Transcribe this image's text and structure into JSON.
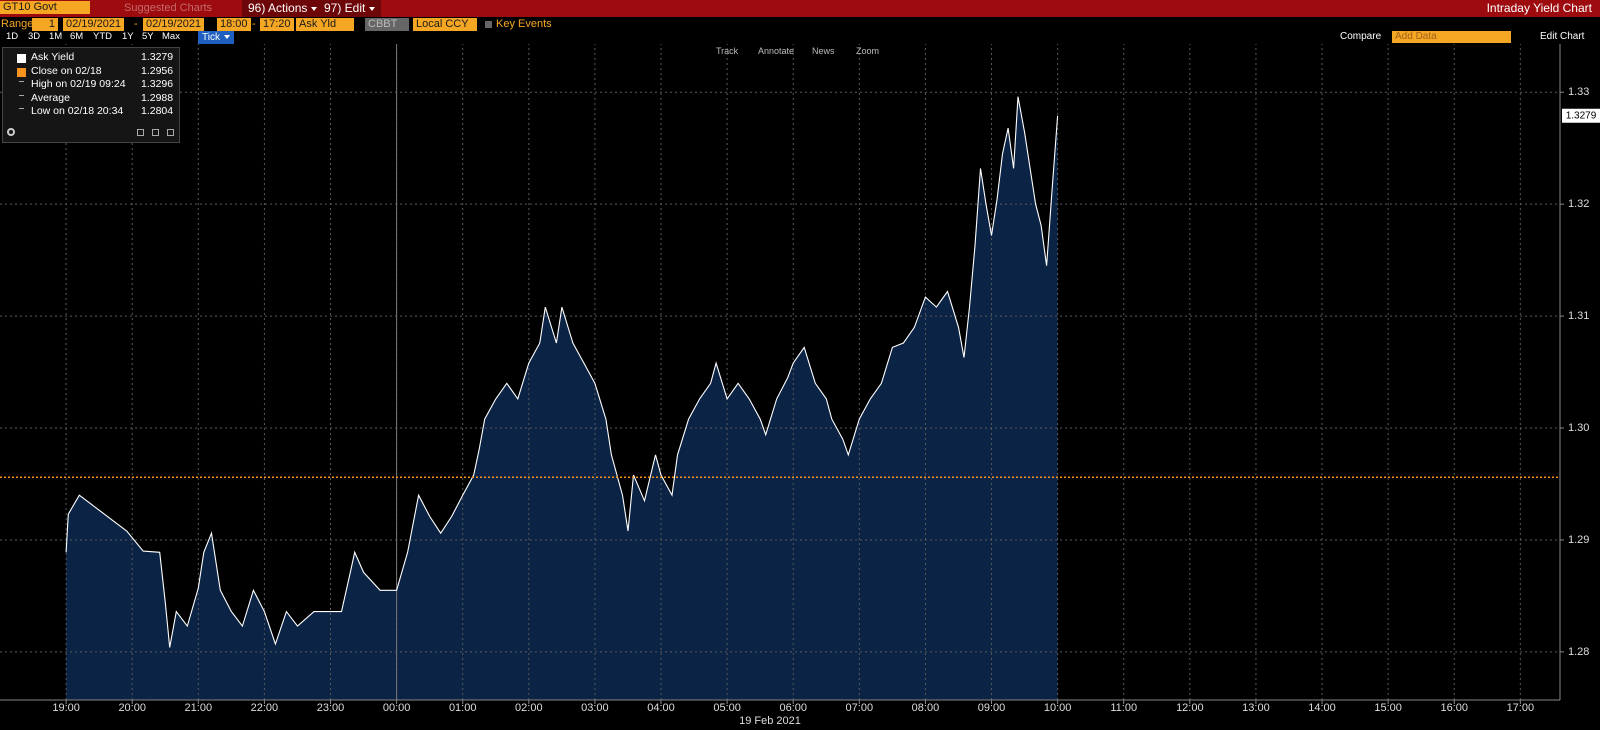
{
  "ui": {
    "security": "GT10 Govt",
    "suggested": "Suggested Charts",
    "actions": "96) Actions",
    "edit": "97) Edit",
    "window_title": "Intraday Yield Chart",
    "range_label": "Range",
    "range_count": "1",
    "start_date": "02/19/2021",
    "date_sep": "-",
    "end_date": "02/19/2021",
    "start_time": "18:00",
    "time_sep": "-",
    "end_time": "17:20",
    "field": "Ask Yld",
    "source": "CBBT",
    "currency": "Local CCY",
    "key_events": "Key Events",
    "periods": [
      "1D",
      "3D",
      "1M",
      "6M",
      "YTD",
      "1Y",
      "5Y",
      "Max"
    ],
    "active_period": "Tick",
    "compare": "Compare",
    "add_data": "Add Data",
    "edit_chart": "Edit Chart",
    "tools": [
      "Track",
      "Annotate",
      "News",
      "Zoom"
    ]
  },
  "chart_data": {
    "type": "area",
    "legend_stats": [
      {
        "label": "Ask Yield",
        "value": 1.3279
      },
      {
        "label": "Close on 02/18",
        "value": 1.2956
      },
      {
        "label": "High on 02/19 09:24",
        "value": 1.3296
      },
      {
        "label": "Average",
        "value": 1.2988
      },
      {
        "label": "Low on 02/18 20:34",
        "value": 1.2804
      }
    ],
    "x_sublabel": "19 Feb 2021",
    "series": [
      {
        "name": "Ask Yield",
        "color": "#ffffff",
        "fill": "#0b2345",
        "x": [
          "2021-02-18T19:00",
          "2021-02-18T19:02",
          "2021-02-18T19:12",
          "2021-02-18T19:55",
          "2021-02-18T20:10",
          "2021-02-18T20:25",
          "2021-02-18T20:30",
          "2021-02-18T20:34",
          "2021-02-18T20:40",
          "2021-02-18T20:50",
          "2021-02-18T21:00",
          "2021-02-18T21:05",
          "2021-02-18T21:12",
          "2021-02-18T21:20",
          "2021-02-18T21:30",
          "2021-02-18T21:40",
          "2021-02-18T21:50",
          "2021-02-18T22:00",
          "2021-02-18T22:10",
          "2021-02-18T22:20",
          "2021-02-18T22:30",
          "2021-02-18T22:45",
          "2021-02-18T23:10",
          "2021-02-18T23:18",
          "2021-02-18T23:22",
          "2021-02-18T23:30",
          "2021-02-18T23:45",
          "2021-02-19T00:00",
          "2021-02-19T00:10",
          "2021-02-19T00:20",
          "2021-02-19T00:30",
          "2021-02-19T00:40",
          "2021-02-19T00:50",
          "2021-02-19T01:00",
          "2021-02-19T01:10",
          "2021-02-19T01:15",
          "2021-02-19T01:20",
          "2021-02-19T01:30",
          "2021-02-19T01:40",
          "2021-02-19T01:50",
          "2021-02-19T02:00",
          "2021-02-19T02:10",
          "2021-02-19T02:15",
          "2021-02-19T02:25",
          "2021-02-19T02:30",
          "2021-02-19T02:40",
          "2021-02-19T02:50",
          "2021-02-19T03:00",
          "2021-02-19T03:10",
          "2021-02-19T03:15",
          "2021-02-19T03:25",
          "2021-02-19T03:30",
          "2021-02-19T03:35",
          "2021-02-19T03:45",
          "2021-02-19T03:55",
          "2021-02-19T04:00",
          "2021-02-19T04:10",
          "2021-02-19T04:15",
          "2021-02-19T04:25",
          "2021-02-19T04:35",
          "2021-02-19T04:45",
          "2021-02-19T04:50",
          "2021-02-19T05:00",
          "2021-02-19T05:10",
          "2021-02-19T05:20",
          "2021-02-19T05:30",
          "2021-02-19T05:35",
          "2021-02-19T05:45",
          "2021-02-19T05:55",
          "2021-02-19T06:00",
          "2021-02-19T06:10",
          "2021-02-19T06:20",
          "2021-02-19T06:30",
          "2021-02-19T06:35",
          "2021-02-19T06:45",
          "2021-02-19T06:50",
          "2021-02-19T07:00",
          "2021-02-19T07:10",
          "2021-02-19T07:20",
          "2021-02-19T07:30",
          "2021-02-19T07:40",
          "2021-02-19T07:50",
          "2021-02-19T08:00",
          "2021-02-19T08:10",
          "2021-02-19T08:20",
          "2021-02-19T08:30",
          "2021-02-19T08:35",
          "2021-02-19T08:40",
          "2021-02-19T08:45",
          "2021-02-19T08:50",
          "2021-02-19T08:55",
          "2021-02-19T09:00",
          "2021-02-19T09:05",
          "2021-02-19T09:10",
          "2021-02-19T09:15",
          "2021-02-19T09:20",
          "2021-02-19T09:24",
          "2021-02-19T09:30",
          "2021-02-19T09:35",
          "2021-02-19T09:40",
          "2021-02-19T09:45",
          "2021-02-19T09:50",
          "2021-02-19T09:55",
          "2021-02-19T10:00"
        ],
        "values": [
          1.2889,
          1.2923,
          1.294,
          1.2908,
          1.289,
          1.2889,
          1.2844,
          1.2804,
          1.2836,
          1.2823,
          1.2857,
          1.2889,
          1.2906,
          1.2855,
          1.2836,
          1.2823,
          1.2855,
          1.2836,
          1.2807,
          1.2836,
          1.2823,
          1.2836,
          1.2836,
          1.2871,
          1.2889,
          1.2871,
          1.2855,
          1.2855,
          1.2889,
          1.294,
          1.2921,
          1.2906,
          1.2921,
          1.294,
          1.2958,
          1.2981,
          1.3008,
          1.3026,
          1.304,
          1.3026,
          1.3058,
          1.3076,
          1.3108,
          1.3076,
          1.3108,
          1.3076,
          1.3058,
          1.304,
          1.3008,
          1.2976,
          1.294,
          1.2908,
          1.2958,
          1.2935,
          1.2976,
          1.2958,
          1.294,
          1.2976,
          1.3008,
          1.3026,
          1.304,
          1.3058,
          1.3026,
          1.304,
          1.3026,
          1.3008,
          1.2994,
          1.3026,
          1.3045,
          1.3058,
          1.3072,
          1.304,
          1.3026,
          1.3008,
          1.299,
          1.2976,
          1.3008,
          1.3026,
          1.304,
          1.3072,
          1.3076,
          1.309,
          1.3117,
          1.3108,
          1.3122,
          1.309,
          1.3063,
          1.3108,
          1.3163,
          1.3232,
          1.32,
          1.3172,
          1.3204,
          1.3245,
          1.3268,
          1.3232,
          1.3296,
          1.3264,
          1.3232,
          1.32,
          1.3181,
          1.3145,
          1.3213,
          1.3279
        ]
      }
    ],
    "close_line_color": "#f7931e",
    "xlim": [
      "2021-02-18T18:00",
      "2021-02-19T17:36"
    ],
    "xticks": [
      {
        "value": "2021-02-18T19:00",
        "label": "19:00"
      },
      {
        "value": "2021-02-18T20:00",
        "label": "20:00"
      },
      {
        "value": "2021-02-18T21:00",
        "label": "21:00"
      },
      {
        "value": "2021-02-18T22:00",
        "label": "22:00"
      },
      {
        "value": "2021-02-18T23:00",
        "label": "23:00"
      },
      {
        "value": "2021-02-19T00:00",
        "label": "00:00"
      },
      {
        "value": "2021-02-19T01:00",
        "label": "01:00"
      },
      {
        "value": "2021-02-19T02:00",
        "label": "02:00"
      },
      {
        "value": "2021-02-19T03:00",
        "label": "03:00"
      },
      {
        "value": "2021-02-19T04:00",
        "label": "04:00"
      },
      {
        "value": "2021-02-19T05:00",
        "label": "05:00"
      },
      {
        "value": "2021-02-19T06:00",
        "label": "06:00"
      },
      {
        "value": "2021-02-19T07:00",
        "label": "07:00"
      },
      {
        "value": "2021-02-19T08:00",
        "label": "08:00"
      },
      {
        "value": "2021-02-19T09:00",
        "label": "09:00"
      },
      {
        "value": "2021-02-19T10:00",
        "label": "10:00"
      },
      {
        "value": "2021-02-19T11:00",
        "label": "11:00"
      },
      {
        "value": "2021-02-19T12:00",
        "label": "12:00"
      },
      {
        "value": "2021-02-19T13:00",
        "label": "13:00"
      },
      {
        "value": "2021-02-19T14:00",
        "label": "14:00"
      },
      {
        "value": "2021-02-19T15:00",
        "label": "15:00"
      },
      {
        "value": "2021-02-19T16:00",
        "label": "16:00"
      },
      {
        "value": "2021-02-19T17:00",
        "label": "17:00"
      }
    ],
    "ylim": [
      1.2757,
      1.3344
    ],
    "yticks": [
      1.28,
      1.29,
      {
        "value": 1.3,
        "label": "1.30"
      },
      1.31,
      1.32,
      1.33
    ],
    "grid": true
  }
}
